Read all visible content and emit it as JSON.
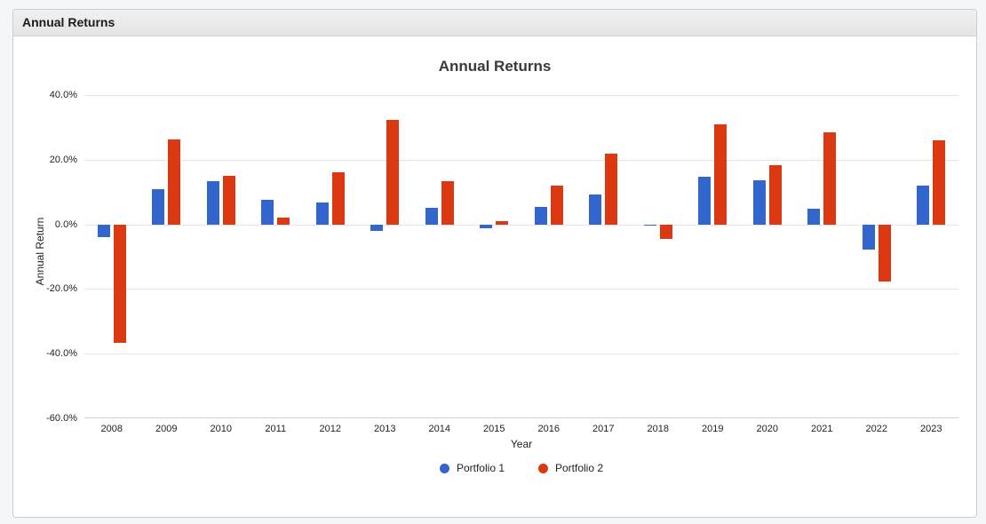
{
  "panel": {
    "header_title": "Annual Returns"
  },
  "chart_data": {
    "type": "bar",
    "title": "Annual Returns",
    "xlabel": "Year",
    "ylabel": "Annual Return",
    "categories": [
      "2008",
      "2009",
      "2010",
      "2011",
      "2012",
      "2013",
      "2014",
      "2015",
      "2016",
      "2017",
      "2018",
      "2019",
      "2020",
      "2021",
      "2022",
      "2023"
    ],
    "series": [
      {
        "name": "Portfolio 1",
        "color": "#3366CC",
        "values": [
          -4.0,
          11.0,
          13.3,
          7.5,
          6.7,
          -2.0,
          5.0,
          -1.3,
          5.5,
          9.2,
          -0.5,
          14.8,
          13.7,
          4.8,
          -7.7,
          11.9
        ]
      },
      {
        "name": "Portfolio 2",
        "color": "#DC3912",
        "values": [
          -36.6,
          26.3,
          15.0,
          2.0,
          16.0,
          32.2,
          13.4,
          1.0,
          11.9,
          21.8,
          -4.5,
          31.0,
          18.2,
          28.5,
          -17.8,
          26.0
        ]
      }
    ],
    "ylim": [
      -60,
      43
    ],
    "yticks": [
      {
        "value": 40,
        "label": "40.0%"
      },
      {
        "value": 20,
        "label": "20.0%"
      },
      {
        "value": 0,
        "label": "0.0%"
      },
      {
        "value": -20,
        "label": "-20.0%"
      },
      {
        "value": -40,
        "label": "-40.0%"
      },
      {
        "value": -60,
        "label": "-60.0%"
      }
    ],
    "grid": true,
    "legend_position": "bottom"
  }
}
